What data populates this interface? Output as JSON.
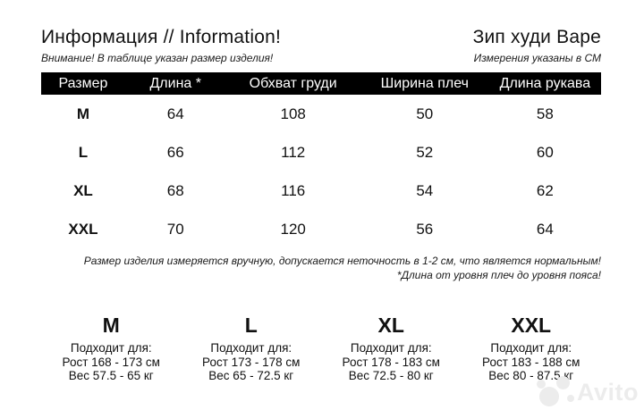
{
  "page": {
    "title_left": "Информация // Information!",
    "subtitle_left": "Внимание! В таблице указан размер изделия!",
    "title_right": "Зип худи Bape",
    "subtitle_right": "Измерения указаны в СМ"
  },
  "table": {
    "columns": [
      "Размер",
      "Длина *",
      "Обхват груди",
      "Ширина плеч",
      "Длина рукава"
    ],
    "rows": [
      {
        "size": "M",
        "values": [
          "64",
          "108",
          "50",
          "58"
        ]
      },
      {
        "size": "L",
        "values": [
          "66",
          "112",
          "52",
          "60"
        ]
      },
      {
        "size": "XL",
        "values": [
          "68",
          "116",
          "54",
          "62"
        ]
      },
      {
        "size": "XXL",
        "values": [
          "70",
          "120",
          "56",
          "64"
        ]
      }
    ]
  },
  "notes": {
    "line1": "Размер изделия измеряется вручную, допускается неточность в 1-2 см, что является нормальным!",
    "line2": "*Длина от уровня плеч до уровня пояса!"
  },
  "size_guide": [
    {
      "size": "M",
      "fits": "Подходит для:",
      "height": "Рост 168 - 173 см",
      "weight": "Вес 57.5 - 65 кг"
    },
    {
      "size": "L",
      "fits": "Подходит для:",
      "height": "Рост 173 - 178 см",
      "weight": "Вес 65 - 72.5 кг"
    },
    {
      "size": "XL",
      "fits": "Подходит для:",
      "height": "Рост 178 - 183 см",
      "weight": "Вес 72.5 - 80 кг"
    },
    {
      "size": "XXL",
      "fits": "Подходит для:",
      "height": "Рост 183 - 188 см",
      "weight": "Вес 80 - 87.5 кг"
    }
  ],
  "watermark": {
    "text": "Avito"
  },
  "colors": {
    "header_bar": "#000000",
    "text": "#111111",
    "watermark": "#ececec"
  }
}
